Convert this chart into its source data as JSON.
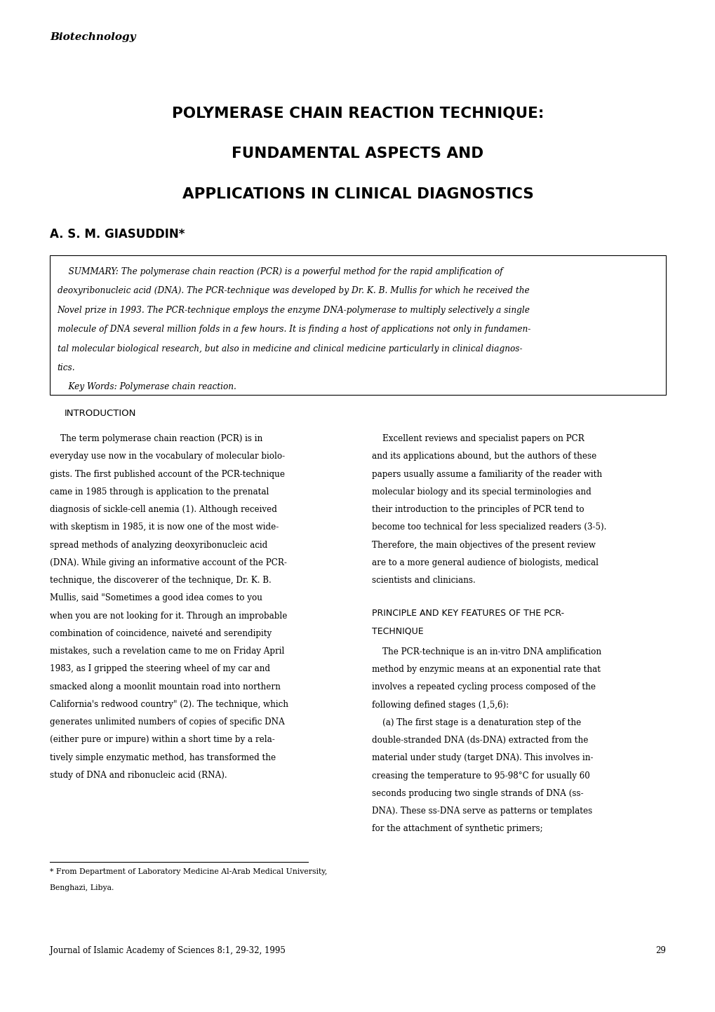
{
  "background_color": "#ffffff",
  "header_label": "Biotechnology",
  "title_line1": "POLYMERASE CHAIN REACTION TECHNIQUE:",
  "title_line2": "FUNDAMENTAL ASPECTS AND",
  "title_line3": "APPLICATIONS IN CLINICAL DIAGNOSTICS",
  "author": "A. S. M. GIASUDDIN*",
  "intro_heading": "INTRODUCTION",
  "principle_heading1": "PRINCIPLE AND KEY FEATURES OF THE PCR-",
  "principle_heading2": "TECHNIQUE",
  "footnote_line1": "* From Department of Laboratory Medicine Al-Arab Medical University,",
  "footnote_line2": "Benghazi, Libya.",
  "journal_footer": "Journal of Islamic Academy of Sciences 8:1, 29-32, 1995",
  "page_number": "29",
  "summary_lines": [
    "    SUMMARY: The polymerase chain reaction (PCR) is a powerful method for the rapid amplification of",
    "deoxyribonucleic acid (DNA). The PCR-technique was developed by Dr. K. B. Mullis for which he received the",
    "Novel prize in 1993. The PCR-technique employs the enzyme DNA-polymerase to multiply selectively a single",
    "molecule of DNA several million folds in a few hours. It is finding a host of applications not only in fundamen-",
    "tal molecular biological research, but also in medicine and clinical medicine particularly in clinical diagnos-",
    "tics.",
    "    Key Words: Polymerase chain reaction."
  ],
  "intro_left_lines": [
    "    The term polymerase chain reaction (PCR) is in",
    "everyday use now in the vocabulary of molecular biolo-",
    "gists. The first published account of the PCR-technique",
    "came in 1985 through is application to the prenatal",
    "diagnosis of sickle-cell anemia (1). Although received",
    "with skeptism in 1985, it is now one of the most wide-",
    "spread methods of analyzing deoxyribonucleic acid",
    "(DNA). While giving an informative account of the PCR-",
    "technique, the discoverer of the technique, Dr. K. B.",
    "Mullis, said \"Sometimes a good idea comes to you",
    "when you are not looking for it. Through an improbable",
    "combination of coincidence, naiveté and serendipity",
    "mistakes, such a revelation came to me on Friday April",
    "1983, as I gripped the steering wheel of my car and",
    "smacked along a moonlit mountain road into northern",
    "California's redwood country\" (2). The technique, which",
    "generates unlimited numbers of copies of specific DNA",
    "(either pure or impure) within a short time by a rela-",
    "tively simple enzymatic method, has transformed the",
    "study of DNA and ribonucleic acid (RNA)."
  ],
  "intro_right_lines": [
    "    Excellent reviews and specialist papers on PCR",
    "and its applications abound, but the authors of these",
    "papers usually assume a familiarity of the reader with",
    "molecular biology and its special terminologies and",
    "their introduction to the principles of PCR tend to",
    "become too technical for less specialized readers (3-5).",
    "Therefore, the main objectives of the present review",
    "are to a more general audience of biologists, medical",
    "scientists and clinicians."
  ],
  "principle_lines": [
    "    The PCR-technique is an in-vitro DNA amplification",
    "method by enzymic means at an exponential rate that",
    "involves a repeated cycling process composed of the",
    "following defined stages (1,5,6):",
    "    (a) The first stage is a denaturation step of the",
    "double-stranded DNA (ds-DNA) extracted from the",
    "material under study (target DNA). This involves in-",
    "creasing the temperature to 95-98°C for usually 60",
    "seconds producing two single strands of DNA (ss-",
    "DNA). These ss-DNA serve as patterns or templates",
    "for the attachment of synthetic primers;"
  ]
}
